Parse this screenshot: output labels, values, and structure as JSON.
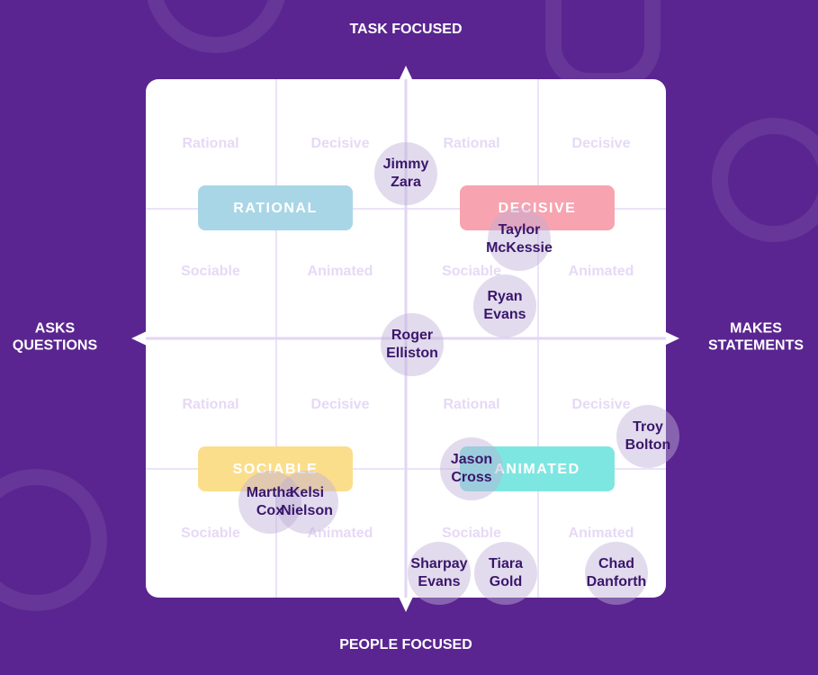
{
  "axes": {
    "top": [
      "TASK FOCUSED"
    ],
    "bottom": [
      "PEOPLE FOCUSED"
    ],
    "left": [
      "ASKS",
      "QUESTIONS"
    ],
    "right": [
      "MAKES",
      "STATEMENTS"
    ]
  },
  "cells": [
    [
      "Rational",
      "Decisive",
      "Rational",
      "Decisive"
    ],
    [
      "Sociable",
      "Animated",
      "Sociable",
      "Animated"
    ],
    [
      "Rational",
      "Decisive",
      "Rational",
      "Decisive"
    ],
    [
      "Sociable",
      "Animated",
      "Sociable",
      "Animated"
    ]
  ],
  "quadrants": [
    "RATIONAL",
    "DECISIVE",
    "SOCIABLE",
    "ANIMATED"
  ],
  "people": [
    [
      "Jimmy",
      "Zara"
    ],
    [
      "Taylor",
      "McKessie"
    ],
    [
      "Ryan",
      "Evans"
    ],
    [
      "Roger",
      "Elliston"
    ],
    [
      "Troy",
      "Bolton"
    ],
    [
      "Jason",
      "Cross"
    ],
    [
      "Martha",
      "Cox"
    ],
    [
      "Kelsi",
      "Nielson"
    ],
    [
      "Sharpay",
      "Evans"
    ],
    [
      "Tiara",
      "Gold"
    ],
    [
      "Chad",
      "Danforth"
    ]
  ]
}
